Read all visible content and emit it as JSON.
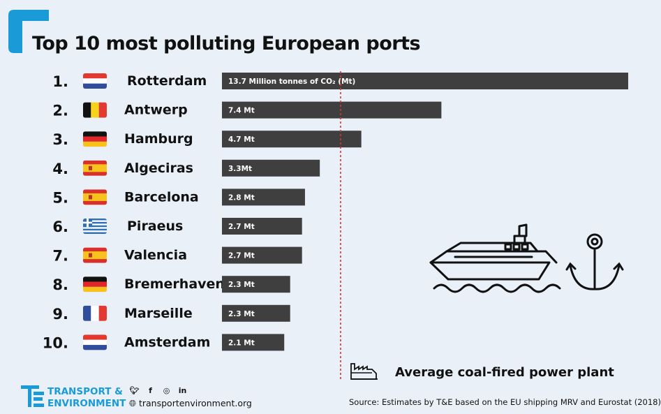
{
  "title": "Top 10 most polluting European ports",
  "chart_data": {
    "type": "bar",
    "orientation": "horizontal",
    "unit": "Million tonnes of CO2 (Mt)",
    "categories": [
      "Rotterdam",
      "Antwerp",
      "Hamburg",
      "Algeciras",
      "Barcelona",
      "Piraeus",
      "Valencia",
      "Bremerhaven",
      "Marseille",
      "Amsterdam"
    ],
    "ranks": [
      "1.",
      "2.",
      "3.",
      "4.",
      "5.",
      "6.",
      "7.",
      "8.",
      "9.",
      "10."
    ],
    "flags": [
      "netherlands-flag",
      "belgium-flag",
      "germany-flag",
      "spain-flag",
      "spain-flag",
      "greece-flag",
      "spain-flag",
      "germany-flag",
      "france-flag",
      "netherlands-flag"
    ],
    "values": [
      13.7,
      7.4,
      4.7,
      3.3,
      2.8,
      2.7,
      2.7,
      2.3,
      2.3,
      2.1
    ],
    "value_labels": [
      "13.7 Million tonnes of CO₂ (Mt)",
      "7.4 Mt",
      "4.7 Mt",
      "3.3Mt",
      "2.8 Mt",
      "2.7 Mt",
      "2.7 Mt",
      "2.3 Mt",
      "2.3 Mt",
      "2.1 Mt"
    ],
    "xlim": [
      0,
      13.7
    ],
    "reference_line": {
      "label": "Average coal-fired power plant",
      "style": "dashed",
      "color": "#e03030",
      "value": 4.0
    },
    "bar_color": "#3f3f3f"
  },
  "icons": {
    "ship": "cruise-ship-icon",
    "anchor": "anchor-icon",
    "factory": "factory-icon"
  },
  "footer": {
    "brand_line1": "TRANSPORT &",
    "brand_line2": "ENVIRONMENT",
    "social": [
      "twitter-icon",
      "facebook-icon",
      "instagram-icon",
      "linkedin-icon"
    ],
    "website": "transportenvironment.org",
    "source": "Source: Estimates by T&E based on the EU shipping MRV and Eurostat (2018)"
  },
  "colors": {
    "background": "#e9f0f8",
    "accent": "#1a9bd7",
    "text": "#111111"
  }
}
